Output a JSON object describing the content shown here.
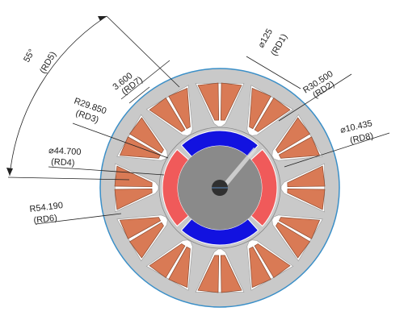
{
  "colors": {
    "background": "#ffffff",
    "stator_steel": "#c9c9c9",
    "stator_edge": "#3a8fc8",
    "slot_window": "#ffffff",
    "coil": "#d97a55",
    "coil_edge": "#8a4a30",
    "magnet_north": "#f05a5a",
    "magnet_south": "#1212e0",
    "rotor_core": "#8a8a8a",
    "shaft": "#303030",
    "annotation_line": "#222222"
  },
  "diagram": {
    "stator_slots": 12,
    "rotor_magnets": 4,
    "magnet_polarities": [
      "south",
      "north",
      "south",
      "north"
    ]
  },
  "dimensions": [
    {
      "id": "RD1",
      "value": "⌀125",
      "label": "(RD1)"
    },
    {
      "id": "RD2",
      "value": "R30.500",
      "label": "(RD2)"
    },
    {
      "id": "RD3",
      "value": "R29.850",
      "label": "(RD3)"
    },
    {
      "id": "RD4",
      "value": "⌀44.700",
      "label": "(RD4)"
    },
    {
      "id": "RD5",
      "value": "55°",
      "label": "(RD5)"
    },
    {
      "id": "RD6",
      "value": "R54.190",
      "label": "(RD6)"
    },
    {
      "id": "RD7",
      "value": "3.600",
      "label": "(RD7)"
    },
    {
      "id": "RD8",
      "value": "⌀10.435",
      "label": "(RD8)"
    }
  ]
}
